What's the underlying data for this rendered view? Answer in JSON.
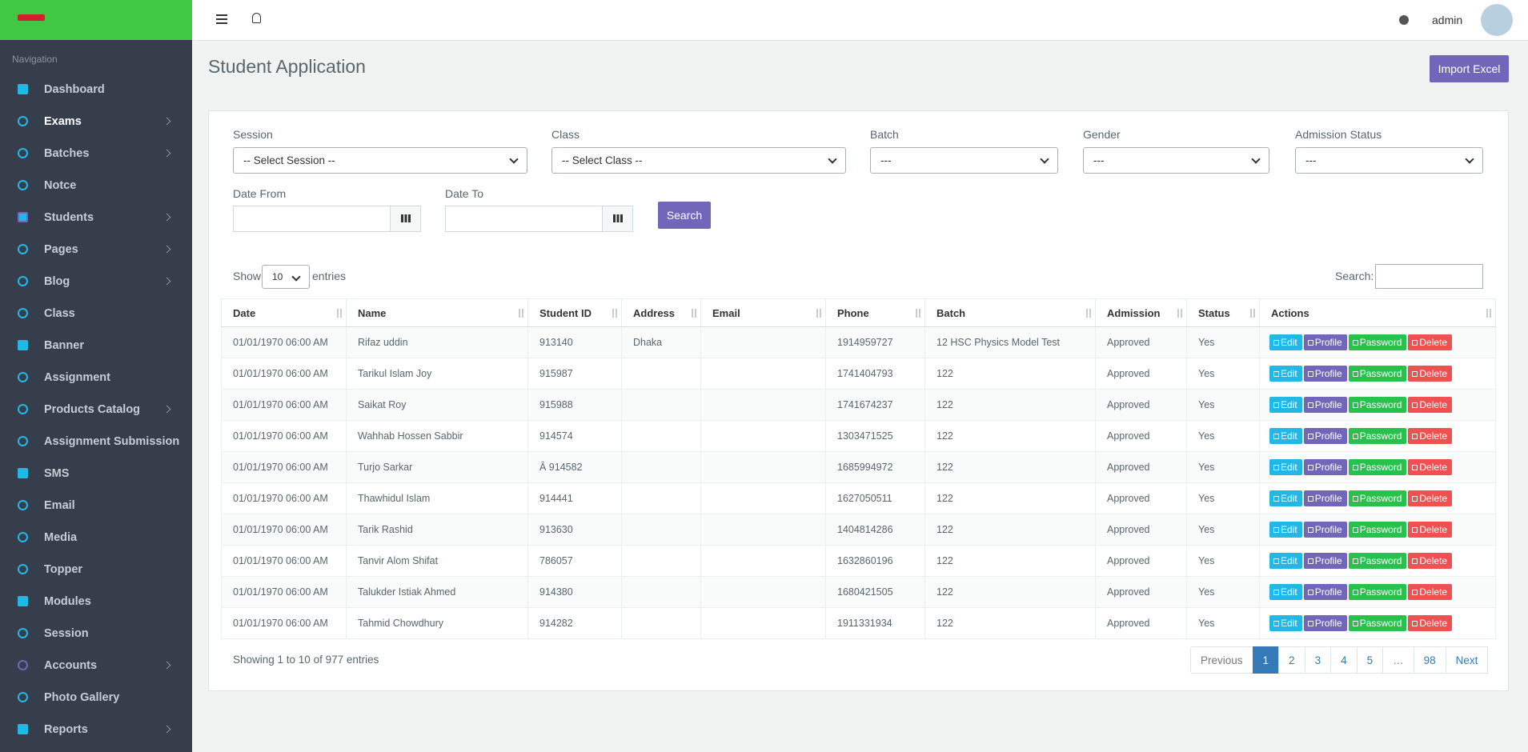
{
  "sidebar": {
    "heading": "Navigation",
    "items": [
      {
        "label": "Dashboard",
        "submenu": false
      },
      {
        "label": "Exams",
        "submenu": true,
        "active": true
      },
      {
        "label": "Batches",
        "submenu": true
      },
      {
        "label": "Notce",
        "submenu": false
      },
      {
        "label": "Students",
        "submenu": true
      },
      {
        "label": "Pages",
        "submenu": true
      },
      {
        "label": "Blog",
        "submenu": true
      },
      {
        "label": "Class",
        "submenu": false
      },
      {
        "label": "Banner",
        "submenu": false
      },
      {
        "label": "Assignment",
        "submenu": false
      },
      {
        "label": "Products Catalog",
        "submenu": true
      },
      {
        "label": "Assignment Submission",
        "submenu": false
      },
      {
        "label": "SMS",
        "submenu": false
      },
      {
        "label": "Email",
        "submenu": false
      },
      {
        "label": "Media",
        "submenu": false
      },
      {
        "label": "Topper",
        "submenu": false
      },
      {
        "label": "Modules",
        "submenu": false
      },
      {
        "label": "Session",
        "submenu": false
      },
      {
        "label": "Accounts",
        "submenu": true
      },
      {
        "label": "Photo Gallery",
        "submenu": false
      },
      {
        "label": "Reports",
        "submenu": true
      }
    ]
  },
  "header": {
    "user": "admin"
  },
  "page": {
    "title": "Student Application",
    "import_button": "Import Excel"
  },
  "filters": {
    "fields": [
      {
        "label": "Session",
        "value": "-- Select Session --"
      },
      {
        "label": "Class",
        "value": "-- Select Class --"
      },
      {
        "label": "Batch",
        "value": "---"
      },
      {
        "label": "Gender",
        "value": "---"
      },
      {
        "label": "Admission Status",
        "value": "---"
      }
    ],
    "date_from": "Date From",
    "date_to": "Date To",
    "search_button": "Search"
  },
  "table": {
    "show": "Show",
    "length": "10",
    "entries": "entries",
    "search": "Search:",
    "columns": [
      "Date",
      "Name",
      "Student ID",
      "Address",
      "Email",
      "Phone",
      "Batch",
      "Admission",
      "Status",
      "Actions"
    ],
    "actions": [
      "Edit",
      "Profile",
      "Password",
      "Delete"
    ],
    "rows": [
      [
        "01/01/1970 06:00 AM",
        "Rifaz uddin",
        "913140",
        "Dhaka",
        null,
        "1914959727",
        "12 HSC Physics Model Test",
        "Approved",
        "Yes"
      ],
      [
        "01/01/1970 06:00 AM",
        "Tarikul Islam Joy",
        "915987",
        null,
        null,
        "1741404793",
        "122",
        "Approved",
        "Yes"
      ],
      [
        "01/01/1970 06:00 AM",
        "Saikat Roy",
        "915988",
        null,
        null,
        "1741674237",
        "122",
        "Approved",
        "Yes"
      ],
      [
        "01/01/1970 06:00 AM",
        "Wahhab Hossen Sabbir",
        "914574",
        null,
        null,
        "1303471525",
        "122",
        "Approved",
        "Yes"
      ],
      [
        "01/01/1970 06:00 AM",
        "Turjo Sarkar",
        "Â 914582",
        null,
        null,
        "1685994972",
        "122",
        "Approved",
        "Yes"
      ],
      [
        "01/01/1970 06:00 AM",
        "Thawhidul Islam",
        "914441",
        null,
        null,
        "1627050511",
        "122",
        "Approved",
        "Yes"
      ],
      [
        "01/01/1970 06:00 AM",
        "Tarik Rashid",
        "913630",
        null,
        null,
        "1404814286",
        "122",
        "Approved",
        "Yes"
      ],
      [
        "01/01/1970 06:00 AM",
        "Tanvir Alom Shifat",
        "786057",
        null,
        null,
        "1632860196",
        "122",
        "Approved",
        "Yes"
      ],
      [
        "01/01/1970 06:00 AM",
        "Talukder Istiak Ahmed",
        "914380",
        null,
        null,
        "1680421505",
        "122",
        "Approved",
        "Yes"
      ],
      [
        "01/01/1970 06:00 AM",
        "Tahmid Chowdhury",
        "914282",
        null,
        null,
        "1911331934",
        "122",
        "Approved",
        "Yes"
      ]
    ],
    "info": "Showing 1 to 10 of 977 entries",
    "pagination": [
      "Previous",
      "1",
      "2",
      "3",
      "4",
      "5",
      "…",
      "98",
      "Next"
    ],
    "current_page": "1"
  }
}
